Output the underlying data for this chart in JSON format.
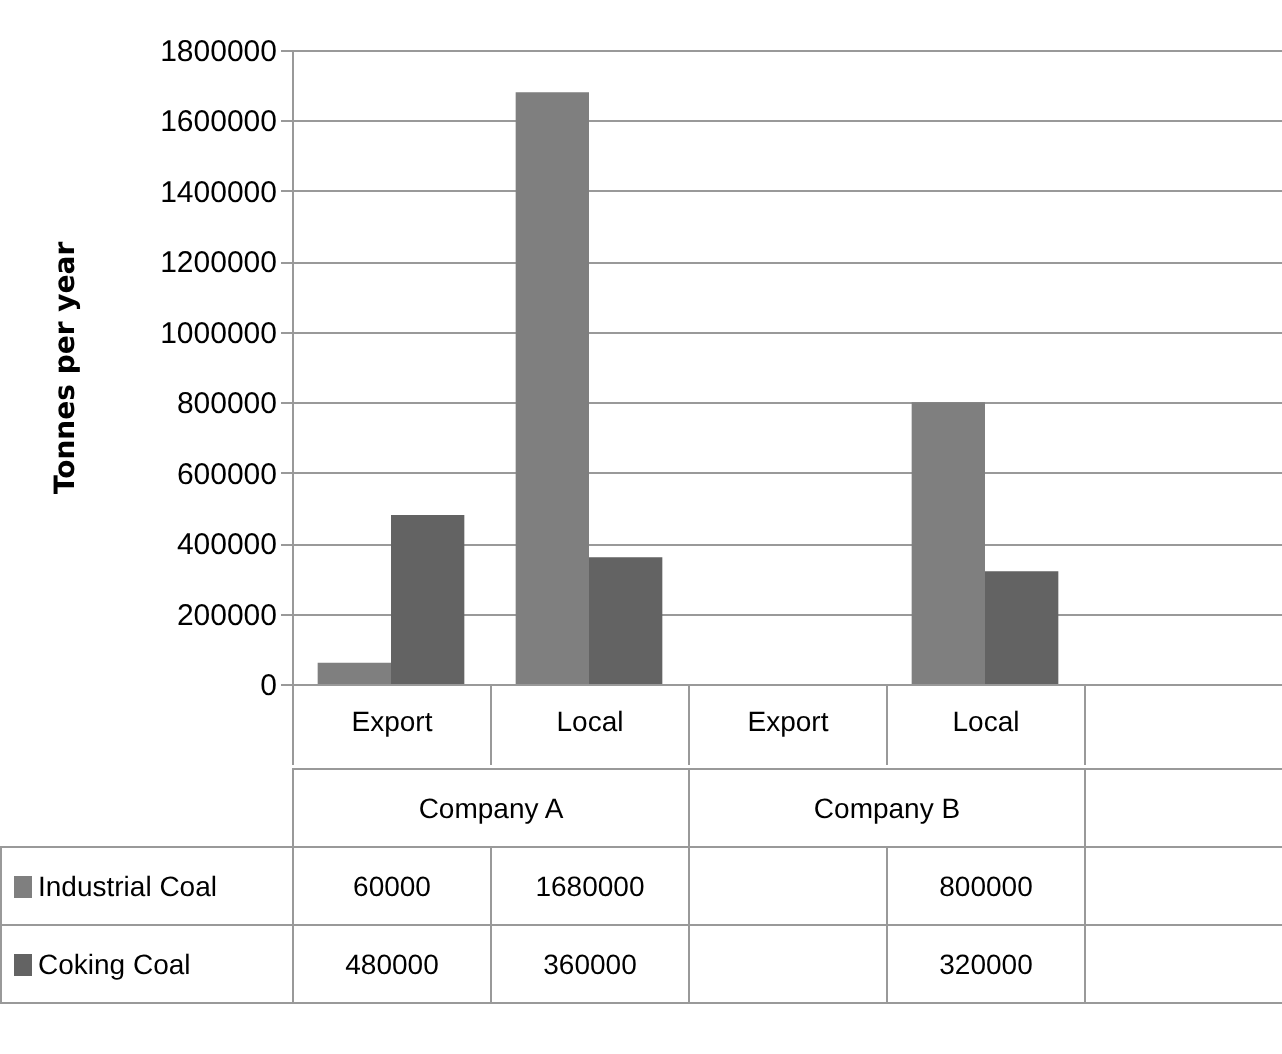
{
  "chart_data": {
    "type": "bar",
    "ylabel": "Tonnes per year",
    "categories": [
      "Export",
      "Local",
      "Export",
      "Local",
      null
    ],
    "series": [
      {
        "name": "Industrial Coal",
        "color": "#7f7f7f",
        "values": [
          60000,
          1680000,
          null,
          800000,
          null
        ]
      },
      {
        "name": "Coking Coal",
        "color": "#636363",
        "values": [
          480000,
          360000,
          null,
          320000,
          null
        ]
      }
    ],
    "ylim": [
      0,
      1800000
    ],
    "yticks": [
      0,
      200000,
      400000,
      600000,
      800000,
      1000000,
      1200000,
      1400000,
      1600000,
      1800000
    ],
    "grid": "y",
    "legend": "bottom left",
    "data_labels": true,
    "annotations": [
      {
        "text": "Company A"
      },
      {
        "text": "Company B"
      }
    ]
  }
}
